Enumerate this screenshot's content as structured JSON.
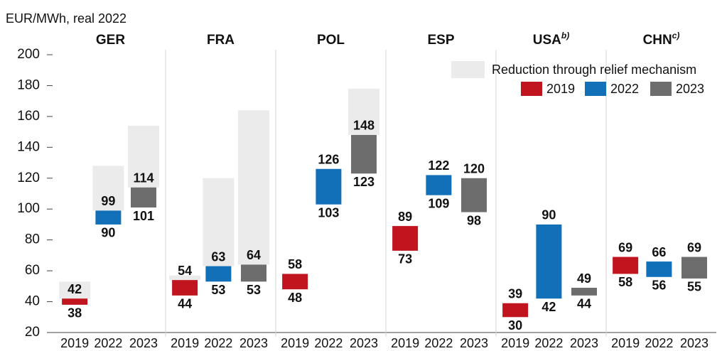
{
  "chart_data": {
    "type": "floating_bar",
    "y_label": "EUR/MWh, real 2022",
    "categories": [
      "GER",
      "FRA",
      "POL",
      "ESP",
      "USA",
      "CHN"
    ],
    "category_notes": [
      null,
      null,
      null,
      null,
      "b)",
      "c)"
    ],
    "ylim": [
      20,
      200
    ],
    "yticks": [
      20,
      40,
      60,
      80,
      100,
      120,
      140,
      160,
      180,
      200
    ],
    "series": [
      {
        "name": "2019",
        "color": "#c0151f",
        "low": [
          38,
          44,
          48,
          73,
          30,
          58
        ],
        "high": [
          42,
          54,
          58,
          89,
          39,
          69
        ]
      },
      {
        "name": "2022",
        "color": "#1170b8",
        "low": [
          90,
          53,
          103,
          109,
          42,
          56
        ],
        "high": [
          99,
          63,
          126,
          122,
          90,
          66
        ]
      },
      {
        "name": "2023",
        "color": "#6d6d6d",
        "low": [
          101,
          53,
          123,
          98,
          44,
          55
        ],
        "high": [
          114,
          64,
          148,
          120,
          49,
          69
        ]
      }
    ],
    "relief": {
      "name": "Reduction through relief mechanism",
      "color": "#ebebeb",
      "values": [
        [
          53,
          57,
          null,
          null,
          null,
          null
        ],
        [
          128,
          120,
          null,
          null,
          null,
          null
        ],
        [
          154,
          164,
          178,
          null,
          null,
          null
        ]
      ]
    }
  }
}
